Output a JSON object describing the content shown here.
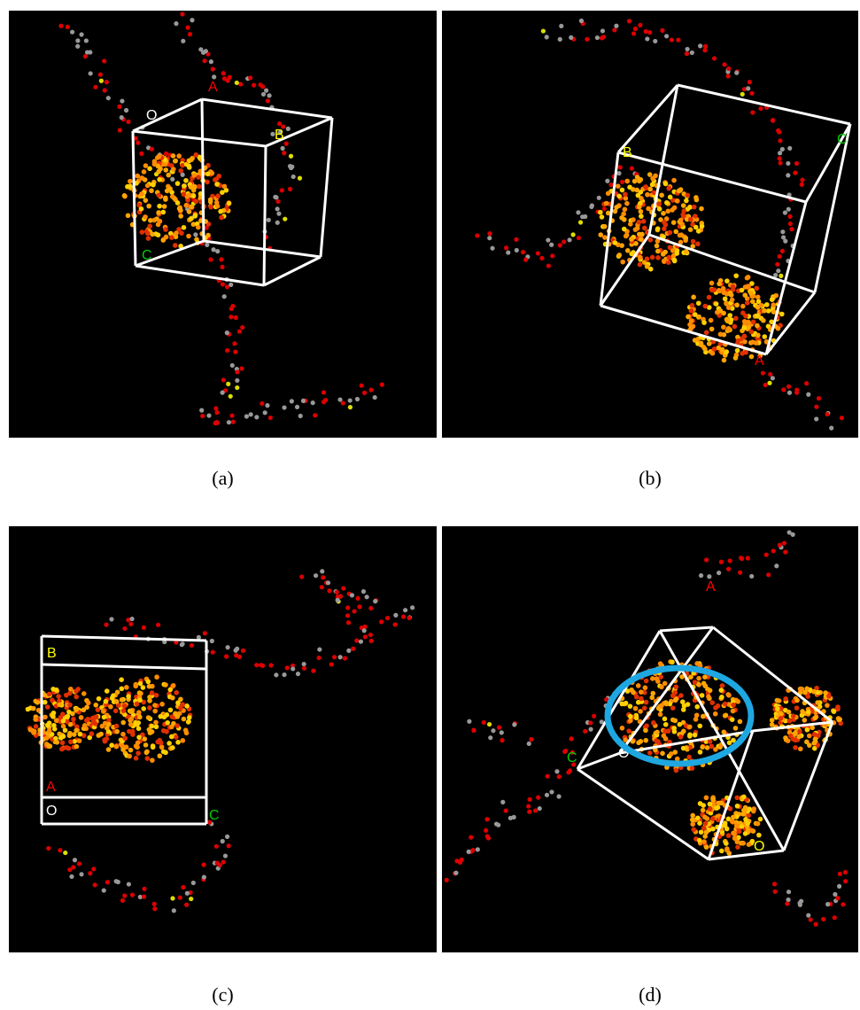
{
  "panels": [
    {
      "caption": "(a)",
      "axis_labels": [
        "A",
        "B",
        "C",
        "O"
      ]
    },
    {
      "caption": "(b)",
      "axis_labels": [
        "A",
        "B",
        "C"
      ]
    },
    {
      "caption": "(c)",
      "axis_labels": [
        "A",
        "B",
        "C",
        "O"
      ]
    },
    {
      "caption": "(d)",
      "axis_labels": [
        "A",
        "C",
        "O",
        "O"
      ]
    }
  ]
}
